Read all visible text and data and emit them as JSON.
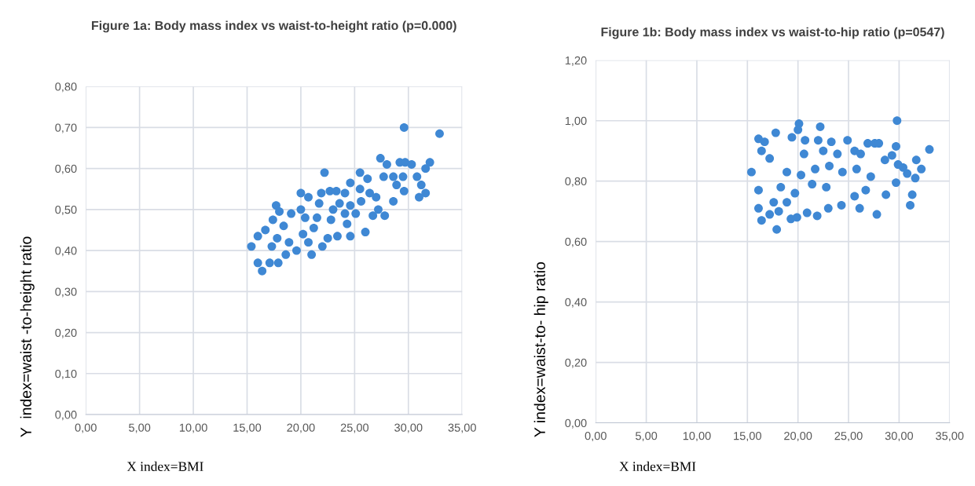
{
  "chart_data": [
    {
      "type": "scatter",
      "title": "Figure 1a: Body mass index vs waist-to-height ratio (p=0.000)",
      "xlabel": "X index=BMI",
      "ylabel": "Y  index=waist -to-height ratio",
      "grid": true,
      "marker": "circle",
      "xlim": [
        0,
        35
      ],
      "ylim": [
        0,
        0.8
      ],
      "xticks": [
        {
          "value": 0,
          "label": "0,00"
        },
        {
          "value": 5,
          "label": "5,00"
        },
        {
          "value": 10,
          "label": "10,00"
        },
        {
          "value": 15,
          "label": "15,00"
        },
        {
          "value": 20,
          "label": "20,00"
        },
        {
          "value": 25,
          "label": "25,00"
        },
        {
          "value": 30,
          "label": "30,00"
        },
        {
          "value": 35,
          "label": "35,00"
        }
      ],
      "yticks": [
        {
          "value": 0,
          "label": "0,00"
        },
        {
          "value": 0.1,
          "label": "0,10"
        },
        {
          "value": 0.2,
          "label": "0,20"
        },
        {
          "value": 0.3,
          "label": "0,30"
        },
        {
          "value": 0.4,
          "label": "0,40"
        },
        {
          "value": 0.5,
          "label": "0,50"
        },
        {
          "value": 0.6,
          "label": "0,60"
        },
        {
          "value": 0.7,
          "label": "0,70"
        },
        {
          "value": 0.8,
          "label": "0,80"
        }
      ],
      "series": [
        {
          "color": "#3f88d4",
          "x": [
            15.4,
            16.0,
            16.0,
            16.4,
            17.1,
            16.7,
            17.4,
            17.7,
            18.0,
            17.9,
            18.6,
            19.1,
            19.6,
            20.0,
            20.0,
            20.7,
            21.0,
            21.5,
            21.9,
            22.2,
            22.0,
            22.5,
            22.7,
            23.3,
            23.4,
            23.0,
            24.1,
            24.6,
            24.6,
            24.3,
            25.5,
            25.5,
            25.1,
            26.0,
            26.2,
            26.7,
            27.0,
            27.2,
            27.4,
            28.0,
            27.7,
            27.8,
            28.6,
            28.6,
            28.9,
            29.2,
            29.6,
            29.5,
            29.6,
            29.7,
            30.3,
            30.8,
            31.0,
            31.2,
            31.6,
            31.6,
            32.0,
            32.9,
            18.4,
            17.8,
            18.9,
            20.4,
            20.2,
            21.2,
            21.7,
            22.8,
            23.6,
            24.6,
            25.6,
            26.4,
            24.1,
            20.7,
            17.3
          ],
          "values": [
            0.41,
            0.435,
            0.37,
            0.35,
            0.37,
            0.45,
            0.475,
            0.51,
            0.495,
            0.37,
            0.39,
            0.49,
            0.4,
            0.54,
            0.5,
            0.53,
            0.39,
            0.48,
            0.54,
            0.59,
            0.41,
            0.43,
            0.545,
            0.545,
            0.435,
            0.5,
            0.54,
            0.565,
            0.435,
            0.465,
            0.59,
            0.55,
            0.49,
            0.445,
            0.575,
            0.485,
            0.53,
            0.5,
            0.625,
            0.61,
            0.58,
            0.485,
            0.58,
            0.52,
            0.56,
            0.615,
            0.545,
            0.58,
            0.7,
            0.615,
            0.61,
            0.58,
            0.53,
            0.56,
            0.54,
            0.6,
            0.615,
            0.685,
            0.46,
            0.43,
            0.42,
            0.48,
            0.44,
            0.455,
            0.515,
            0.475,
            0.515,
            0.51,
            0.52,
            0.54,
            0.49,
            0.42,
            0.41
          ]
        }
      ]
    },
    {
      "type": "scatter",
      "title": "Figure 1b: Body mass index vs waist-to-hip ratio (p=0547)",
      "xlabel": "X index=BMI",
      "ylabel": "Y index=waist-to- hip ratio",
      "grid": true,
      "marker": "circle",
      "xlim": [
        0,
        35
      ],
      "ylim": [
        0,
        1.2
      ],
      "xticks": [
        {
          "value": 0,
          "label": "0,00"
        },
        {
          "value": 5,
          "label": "5,00"
        },
        {
          "value": 10,
          "label": "10,00"
        },
        {
          "value": 15,
          "label": "15,00"
        },
        {
          "value": 20,
          "label": "20,00"
        },
        {
          "value": 25,
          "label": "25,00"
        },
        {
          "value": 30,
          "label": "30,00"
        },
        {
          "value": 35,
          "label": "35,00"
        }
      ],
      "yticks": [
        {
          "value": 0,
          "label": "0,00"
        },
        {
          "value": 0.2,
          "label": "0,20"
        },
        {
          "value": 0.4,
          "label": "0,40"
        },
        {
          "value": 0.6,
          "label": "0,60"
        },
        {
          "value": 0.8,
          "label": "0,80"
        },
        {
          "value": 1.0,
          "label": "1,00"
        },
        {
          "value": 1.2,
          "label": "1,20"
        }
      ],
      "series": [
        {
          "color": "#3f88d4",
          "x": [
            15.4,
            16.1,
            16.7,
            16.4,
            16.1,
            16.1,
            16.4,
            17.2,
            17.9,
            17.2,
            17.8,
            17.6,
            18.1,
            19.4,
            19.3,
            19.9,
            20.1,
            20.0,
            20.7,
            20.9,
            21.9,
            22.0,
            22.2,
            23.0,
            23.3,
            24.3,
            24.9,
            25.6,
            26.2,
            26.1,
            26.9,
            27.6,
            28.0,
            27.8,
            28.6,
            28.7,
            29.3,
            29.7,
            29.8,
            29.7,
            29.9,
            30.4,
            30.8,
            31.1,
            31.3,
            31.6,
            31.7,
            32.2,
            33.0,
            18.9,
            20.3,
            21.7,
            23.1,
            24.4,
            25.8,
            27.2,
            18.3,
            19.7,
            21.4,
            22.8,
            25.6,
            20.6,
            22.5,
            23.9,
            18.9,
            26.7
          ],
          "values": [
            0.83,
            0.94,
            0.93,
            0.9,
            0.77,
            0.71,
            0.67,
            0.69,
            0.64,
            0.875,
            0.96,
            0.73,
            0.7,
            0.945,
            0.675,
            0.68,
            0.99,
            0.97,
            0.935,
            0.695,
            0.685,
            0.935,
            0.98,
            0.71,
            0.93,
            0.72,
            0.935,
            0.9,
            0.89,
            0.71,
            0.925,
            0.925,
            0.925,
            0.69,
            0.87,
            0.755,
            0.885,
            0.915,
            1.0,
            0.795,
            0.855,
            0.845,
            0.825,
            0.72,
            0.755,
            0.81,
            0.87,
            0.84,
            0.905,
            0.83,
            0.82,
            0.84,
            0.85,
            0.83,
            0.84,
            0.815,
            0.78,
            0.76,
            0.79,
            0.78,
            0.75,
            0.89,
            0.9,
            0.89,
            0.73,
            0.77
          ]
        }
      ]
    }
  ]
}
